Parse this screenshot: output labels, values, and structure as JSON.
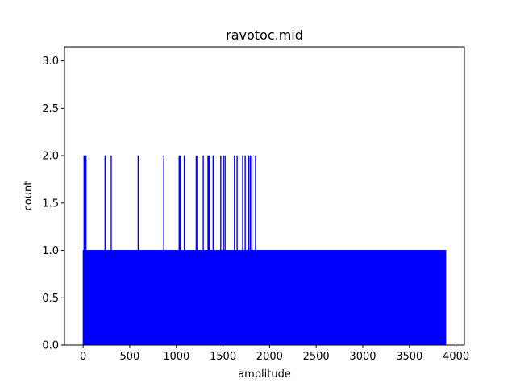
{
  "chart_data": {
    "type": "bar",
    "title": "ravotoc.mid",
    "xlabel": "amplitude",
    "ylabel": "count",
    "xlim": [
      -200,
      4090
    ],
    "ylim": [
      0,
      3.15
    ],
    "x_ticks": [
      0,
      500,
      1000,
      1500,
      2000,
      2500,
      3000,
      3500,
      4000
    ],
    "y_ticks": [
      0.0,
      0.5,
      1.0,
      1.5,
      2.0,
      2.5,
      3.0
    ],
    "grid": false,
    "legend": false,
    "bar_color": "#0000ff",
    "bin_width": 1,
    "series": [
      {
        "base_range": [
          0,
          3889
        ],
        "base_count": 1,
        "count_2_at": [
          7,
          27,
          232,
          298,
          587,
          862,
          1027,
          1039,
          1082,
          1210,
          1223,
          1285,
          1336,
          1345,
          1352,
          1391,
          1473,
          1502,
          1519,
          1620,
          1648,
          1708,
          1735,
          1772,
          1789,
          1806,
          1846
        ]
      }
    ]
  }
}
